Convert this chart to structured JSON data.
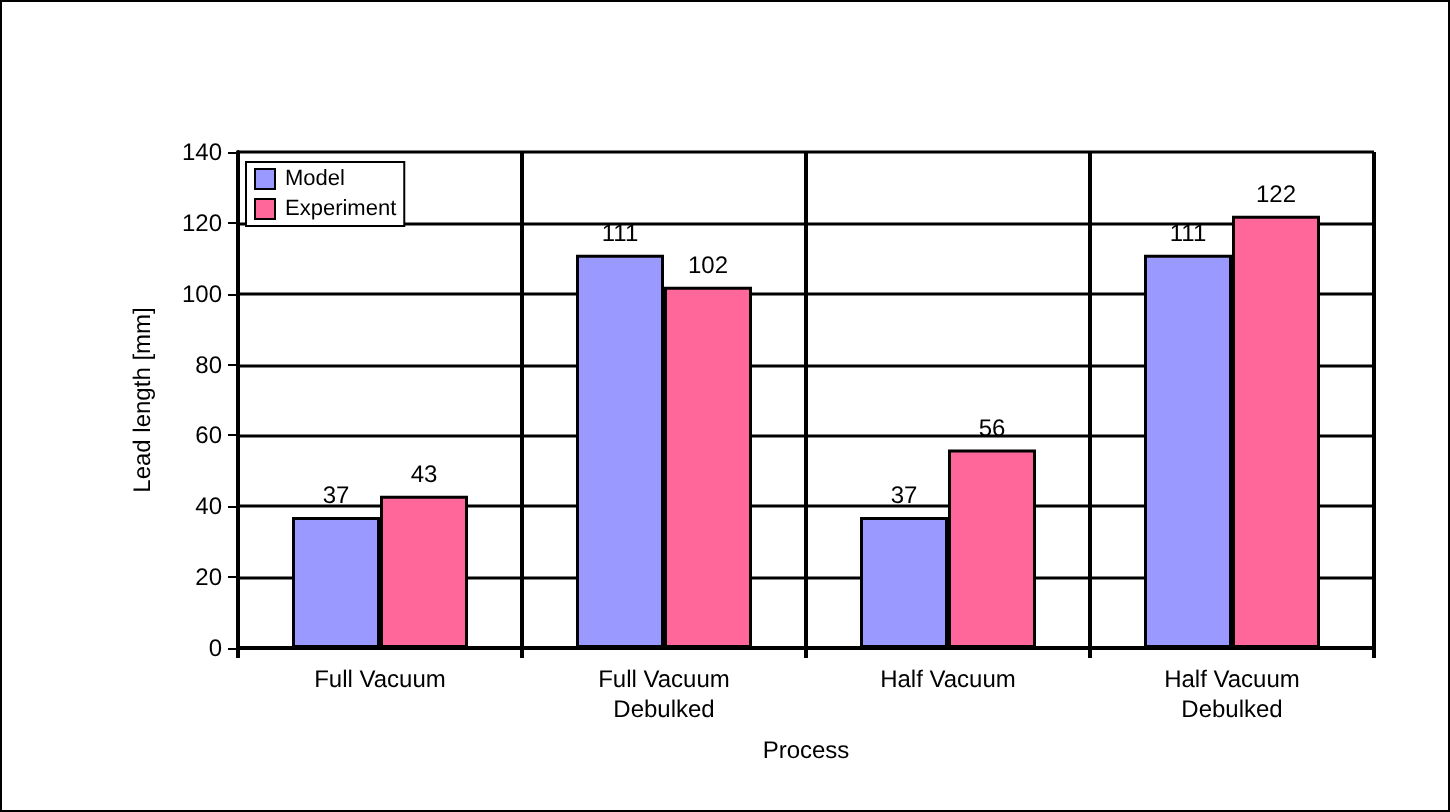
{
  "chart_data": {
    "type": "bar",
    "xlabel": "Process",
    "ylabel": "Lead length [mm]",
    "categories": [
      "Full Vacuum",
      "Full Vacuum\nDebulked",
      "Half Vacuum",
      "Half Vacuum\nDebulked"
    ],
    "series": [
      {
        "name": "Model",
        "color": "#9999ff",
        "values": [
          37,
          111,
          37,
          111
        ]
      },
      {
        "name": "Experiment",
        "color": "#ff6699",
        "values": [
          43,
          102,
          56,
          122
        ]
      }
    ],
    "ylim": [
      0,
      140
    ],
    "yticks": [
      0,
      20,
      40,
      60,
      80,
      100,
      120,
      140
    ],
    "grid": true,
    "legend": "top left",
    "data_labels": true
  }
}
